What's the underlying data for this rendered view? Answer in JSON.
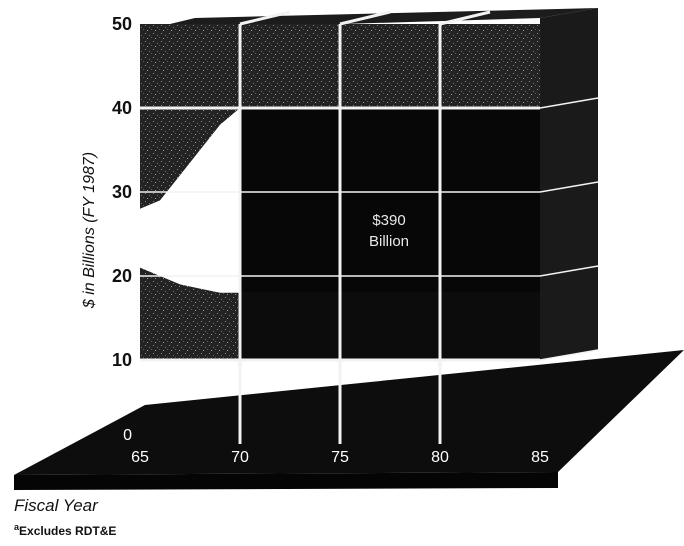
{
  "chart_data": {
    "type": "area",
    "ylabel": "$ in Billions (FY 1987)",
    "xlabel": "Fiscal Year",
    "ylim": [
      0,
      50
    ],
    "yticks": [
      "0",
      "10",
      "20",
      "30",
      "40",
      "50"
    ],
    "xticks": [
      "65",
      "70",
      "75",
      "80",
      "85"
    ],
    "x": [
      65,
      66,
      67,
      68,
      69,
      70,
      75,
      80,
      85
    ],
    "upper_boundary": [
      28,
      29,
      32,
      35,
      38,
      40,
      40,
      40,
      40
    ],
    "lower_boundary": [
      21,
      20,
      19,
      18.5,
      18,
      18,
      18,
      18,
      18
    ],
    "annotation_value": "$390",
    "annotation_unit": "Billion",
    "grid": true,
    "footnote_marker": "a",
    "footnote": "Excludes RDT&E"
  }
}
